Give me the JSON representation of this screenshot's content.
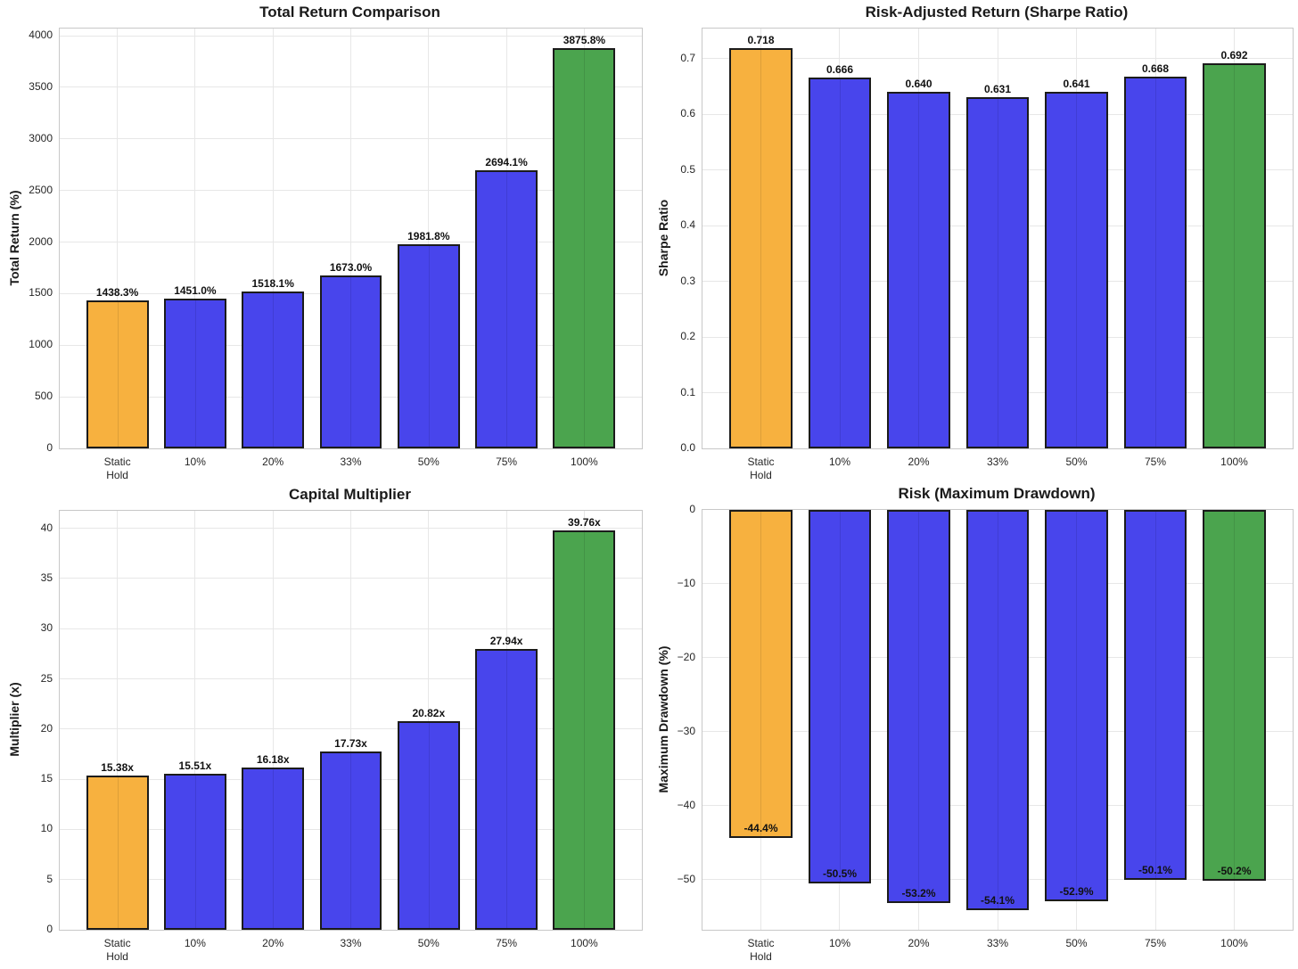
{
  "figure": {
    "background": "#ffffff",
    "grid_color": "#e7e7e7",
    "spine_color": "#c8c8c8",
    "bar_edge_color": "#1b1b1b",
    "text_color": "#1a1a1a"
  },
  "bar_colors": [
    "#f7b13f",
    "#4845ec",
    "#4845ec",
    "#4845ec",
    "#4845ec",
    "#4845ec",
    "#4ba44e"
  ],
  "categories": [
    "Static\nHold",
    "10%",
    "20%",
    "33%",
    "50%",
    "75%",
    "100%"
  ],
  "chart_data": [
    {
      "type": "bar",
      "title": "Total Return Comparison",
      "ylabel": "Total Return (%)",
      "xlabel": "",
      "categories": [
        "Static\nHold",
        "10%",
        "20%",
        "33%",
        "50%",
        "75%",
        "100%"
      ],
      "values": [
        1438.3,
        1451.0,
        1518.1,
        1673.0,
        1981.8,
        2694.1,
        3875.8
      ],
      "bar_labels": [
        "1438.3%",
        "1451.0%",
        "1518.1%",
        "1673.0%",
        "1981.8%",
        "2694.1%",
        "3875.8%"
      ],
      "yticks": [
        0,
        500,
        1000,
        1500,
        2000,
        2500,
        3000,
        3500,
        4000
      ],
      "ytick_labels": [
        "0",
        "500",
        "1000",
        "1500",
        "2000",
        "2500",
        "3000",
        "3500",
        "4000"
      ],
      "ylim": [
        0,
        4070
      ],
      "grid": true,
      "legend": false,
      "label_position": "above"
    },
    {
      "type": "bar",
      "title": "Risk-Adjusted Return (Sharpe Ratio)",
      "ylabel": "Sharpe Ratio",
      "xlabel": "",
      "categories": [
        "Static\nHold",
        "10%",
        "20%",
        "33%",
        "50%",
        "75%",
        "100%"
      ],
      "values": [
        0.718,
        0.666,
        0.64,
        0.631,
        0.641,
        0.668,
        0.692
      ],
      "bar_labels": [
        "0.718",
        "0.666",
        "0.640",
        "0.631",
        "0.641",
        "0.668",
        "0.692"
      ],
      "yticks": [
        0.0,
        0.1,
        0.2,
        0.3,
        0.4,
        0.5,
        0.6,
        0.7
      ],
      "ytick_labels": [
        "0.0",
        "0.1",
        "0.2",
        "0.3",
        "0.4",
        "0.5",
        "0.6",
        "0.7"
      ],
      "ylim": [
        0,
        0.754
      ],
      "grid": true,
      "legend": false,
      "label_position": "above"
    },
    {
      "type": "bar",
      "title": "Capital Multiplier",
      "ylabel": "Multiplier (x)",
      "xlabel": "",
      "categories": [
        "Static\nHold",
        "10%",
        "20%",
        "33%",
        "50%",
        "75%",
        "100%"
      ],
      "values": [
        15.38,
        15.51,
        16.18,
        17.73,
        20.82,
        27.94,
        39.76
      ],
      "bar_labels": [
        "15.38x",
        "15.51x",
        "16.18x",
        "17.73x",
        "20.82x",
        "27.94x",
        "39.76x"
      ],
      "yticks": [
        0,
        5,
        10,
        15,
        20,
        25,
        30,
        35,
        40
      ],
      "ytick_labels": [
        "0",
        "5",
        "10",
        "15",
        "20",
        "25",
        "30",
        "35",
        "40"
      ],
      "ylim": [
        0,
        41.75
      ],
      "grid": true,
      "legend": false,
      "label_position": "above"
    },
    {
      "type": "bar",
      "title": "Risk (Maximum Drawdown)",
      "ylabel": "Maximum Drawdown (%)",
      "xlabel": "",
      "categories": [
        "Static\nHold",
        "10%",
        "20%",
        "33%",
        "50%",
        "75%",
        "100%"
      ],
      "values": [
        -44.4,
        -50.5,
        -53.2,
        -54.1,
        -52.9,
        -50.1,
        -50.2
      ],
      "bar_labels": [
        "-44.4%",
        "-50.5%",
        "-53.2%",
        "-54.1%",
        "-52.9%",
        "-50.1%",
        "-50.2%"
      ],
      "yticks": [
        0,
        -10,
        -20,
        -30,
        -40,
        -50
      ],
      "ytick_labels": [
        "0",
        "−10",
        "−20",
        "−30",
        "−40",
        "−50"
      ],
      "ylim": [
        -56.8,
        0
      ],
      "grid": true,
      "legend": false,
      "label_position": "inside-end"
    }
  ]
}
